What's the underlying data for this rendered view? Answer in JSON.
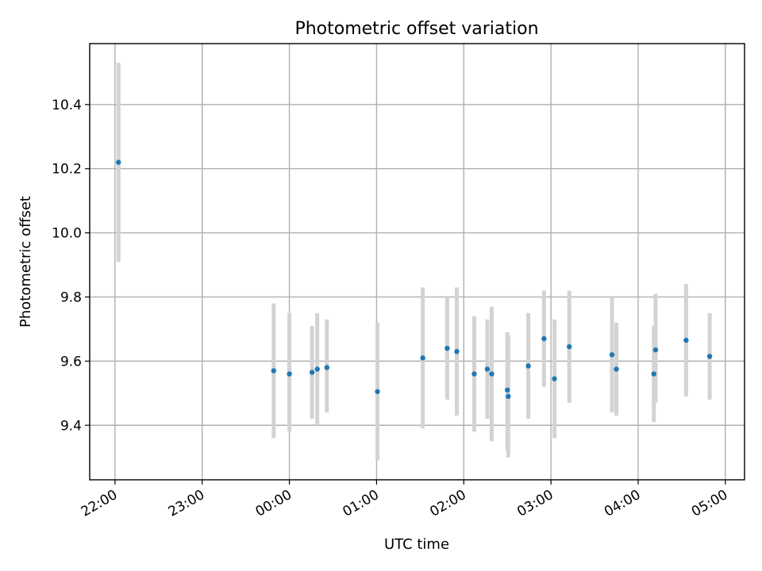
{
  "chart_data": {
    "type": "scatter",
    "title": "Photometric offset variation",
    "xlabel": "UTC time",
    "ylabel": "Photometric offset",
    "grid": true,
    "x_unit": "hours since 22:00 UTC",
    "xlim": [
      -0.29,
      7.22
    ],
    "ylim": [
      9.23,
      10.59
    ],
    "x_ticks": [
      {
        "value": 0,
        "label": "22:00"
      },
      {
        "value": 1,
        "label": "23:00"
      },
      {
        "value": 2,
        "label": "00:00"
      },
      {
        "value": 3,
        "label": "01:00"
      },
      {
        "value": 4,
        "label": "02:00"
      },
      {
        "value": 5,
        "label": "03:00"
      },
      {
        "value": 6,
        "label": "04:00"
      },
      {
        "value": 7,
        "label": "05:00"
      }
    ],
    "y_ticks": [
      {
        "value": 9.4,
        "label": "9.4"
      },
      {
        "value": 9.6,
        "label": "9.6"
      },
      {
        "value": 9.8,
        "label": "9.8"
      },
      {
        "value": 10.0,
        "label": "10.0"
      },
      {
        "value": 10.2,
        "label": "10.2"
      },
      {
        "value": 10.4,
        "label": "10.4"
      }
    ],
    "series": [
      {
        "name": "Photometric offset",
        "color": "#1f77b4",
        "errorbar_color": "#d3d3d3",
        "points": [
          {
            "x": 0.04,
            "y": 10.22,
            "err_low": 9.91,
            "err_high": 10.53
          },
          {
            "x": 1.82,
            "y": 9.57,
            "err_low": 9.36,
            "err_high": 9.78
          },
          {
            "x": 2.0,
            "y": 9.56,
            "err_low": 9.38,
            "err_high": 9.75
          },
          {
            "x": 2.26,
            "y": 9.565,
            "err_low": 9.42,
            "err_high": 9.71
          },
          {
            "x": 2.32,
            "y": 9.575,
            "err_low": 9.4,
            "err_high": 9.75
          },
          {
            "x": 2.43,
            "y": 9.58,
            "err_low": 9.44,
            "err_high": 9.73
          },
          {
            "x": 3.01,
            "y": 9.505,
            "err_low": 9.29,
            "err_high": 9.72
          },
          {
            "x": 3.53,
            "y": 9.61,
            "err_low": 9.39,
            "err_high": 9.83
          },
          {
            "x": 3.81,
            "y": 9.64,
            "err_low": 9.48,
            "err_high": 9.8
          },
          {
            "x": 3.92,
            "y": 9.63,
            "err_low": 9.43,
            "err_high": 9.83
          },
          {
            "x": 4.12,
            "y": 9.56,
            "err_low": 9.38,
            "err_high": 9.74
          },
          {
            "x": 4.27,
            "y": 9.575,
            "err_low": 9.42,
            "err_high": 9.73
          },
          {
            "x": 4.32,
            "y": 9.56,
            "err_low": 9.35,
            "err_high": 9.77
          },
          {
            "x": 4.5,
            "y": 9.51,
            "err_low": 9.32,
            "err_high": 9.69
          },
          {
            "x": 4.51,
            "y": 9.49,
            "err_low": 9.3,
            "err_high": 9.68
          },
          {
            "x": 4.74,
            "y": 9.585,
            "err_low": 9.42,
            "err_high": 9.75
          },
          {
            "x": 4.92,
            "y": 9.67,
            "err_low": 9.52,
            "err_high": 9.82
          },
          {
            "x": 5.04,
            "y": 9.545,
            "err_low": 9.36,
            "err_high": 9.73
          },
          {
            "x": 5.21,
            "y": 9.645,
            "err_low": 9.47,
            "err_high": 9.82
          },
          {
            "x": 5.7,
            "y": 9.62,
            "err_low": 9.44,
            "err_high": 9.8
          },
          {
            "x": 5.75,
            "y": 9.575,
            "err_low": 9.43,
            "err_high": 9.72
          },
          {
            "x": 6.18,
            "y": 9.56,
            "err_low": 9.41,
            "err_high": 9.71
          },
          {
            "x": 6.2,
            "y": 9.635,
            "err_low": 9.47,
            "err_high": 9.81
          },
          {
            "x": 6.55,
            "y": 9.665,
            "err_low": 9.49,
            "err_high": 9.84
          },
          {
            "x": 6.82,
            "y": 9.615,
            "err_low": 9.48,
            "err_high": 9.75
          }
        ]
      }
    ]
  }
}
